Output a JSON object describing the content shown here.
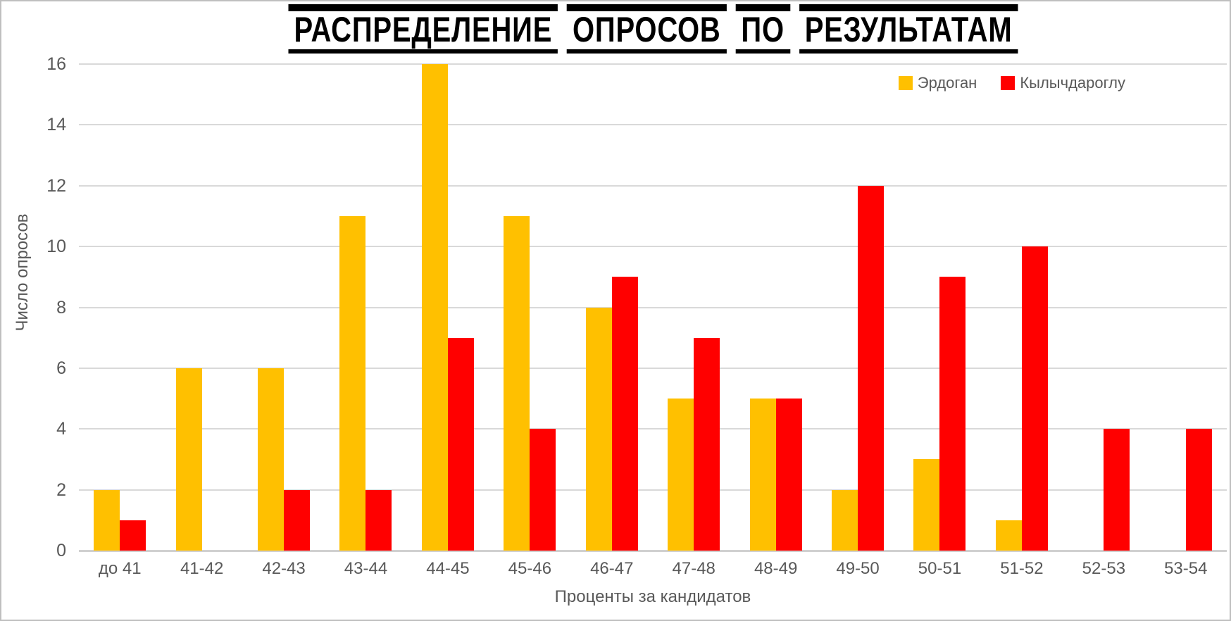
{
  "chart_data": {
    "type": "bar",
    "title": "РАСПРЕДЕЛЕНИЕ ОПРОСОВ ПО РЕЗУЛЬТАТАМ",
    "categories": [
      "до 41",
      "41-42",
      "42-43",
      "43-44",
      "44-45",
      "45-46",
      "46-47",
      "47-48",
      "48-49",
      "49-50",
      "50-51",
      "51-52",
      "52-53",
      "53-54"
    ],
    "series": [
      {
        "name": "Эрдоган",
        "color": "#FFC000",
        "values": [
          2,
          6,
          6,
          11,
          16,
          11,
          8,
          5,
          5,
          2,
          3,
          1,
          0,
          0
        ]
      },
      {
        "name": "Кылычдароглу",
        "color": "#FF0000",
        "values": [
          1,
          0,
          2,
          2,
          7,
          4,
          9,
          7,
          5,
          12,
          9,
          10,
          4,
          4
        ]
      }
    ],
    "xlabel": "Проценты за кандидатов",
    "ylabel": "Число опросов",
    "ylim": [
      0,
      16
    ],
    "ytick_step": 2,
    "grid": true,
    "legend_position": "top-right"
  },
  "colors": {
    "text_gray": "#595959",
    "gridline": "#D9D9D9",
    "border": "#BFBFBF",
    "title": "#000000"
  }
}
